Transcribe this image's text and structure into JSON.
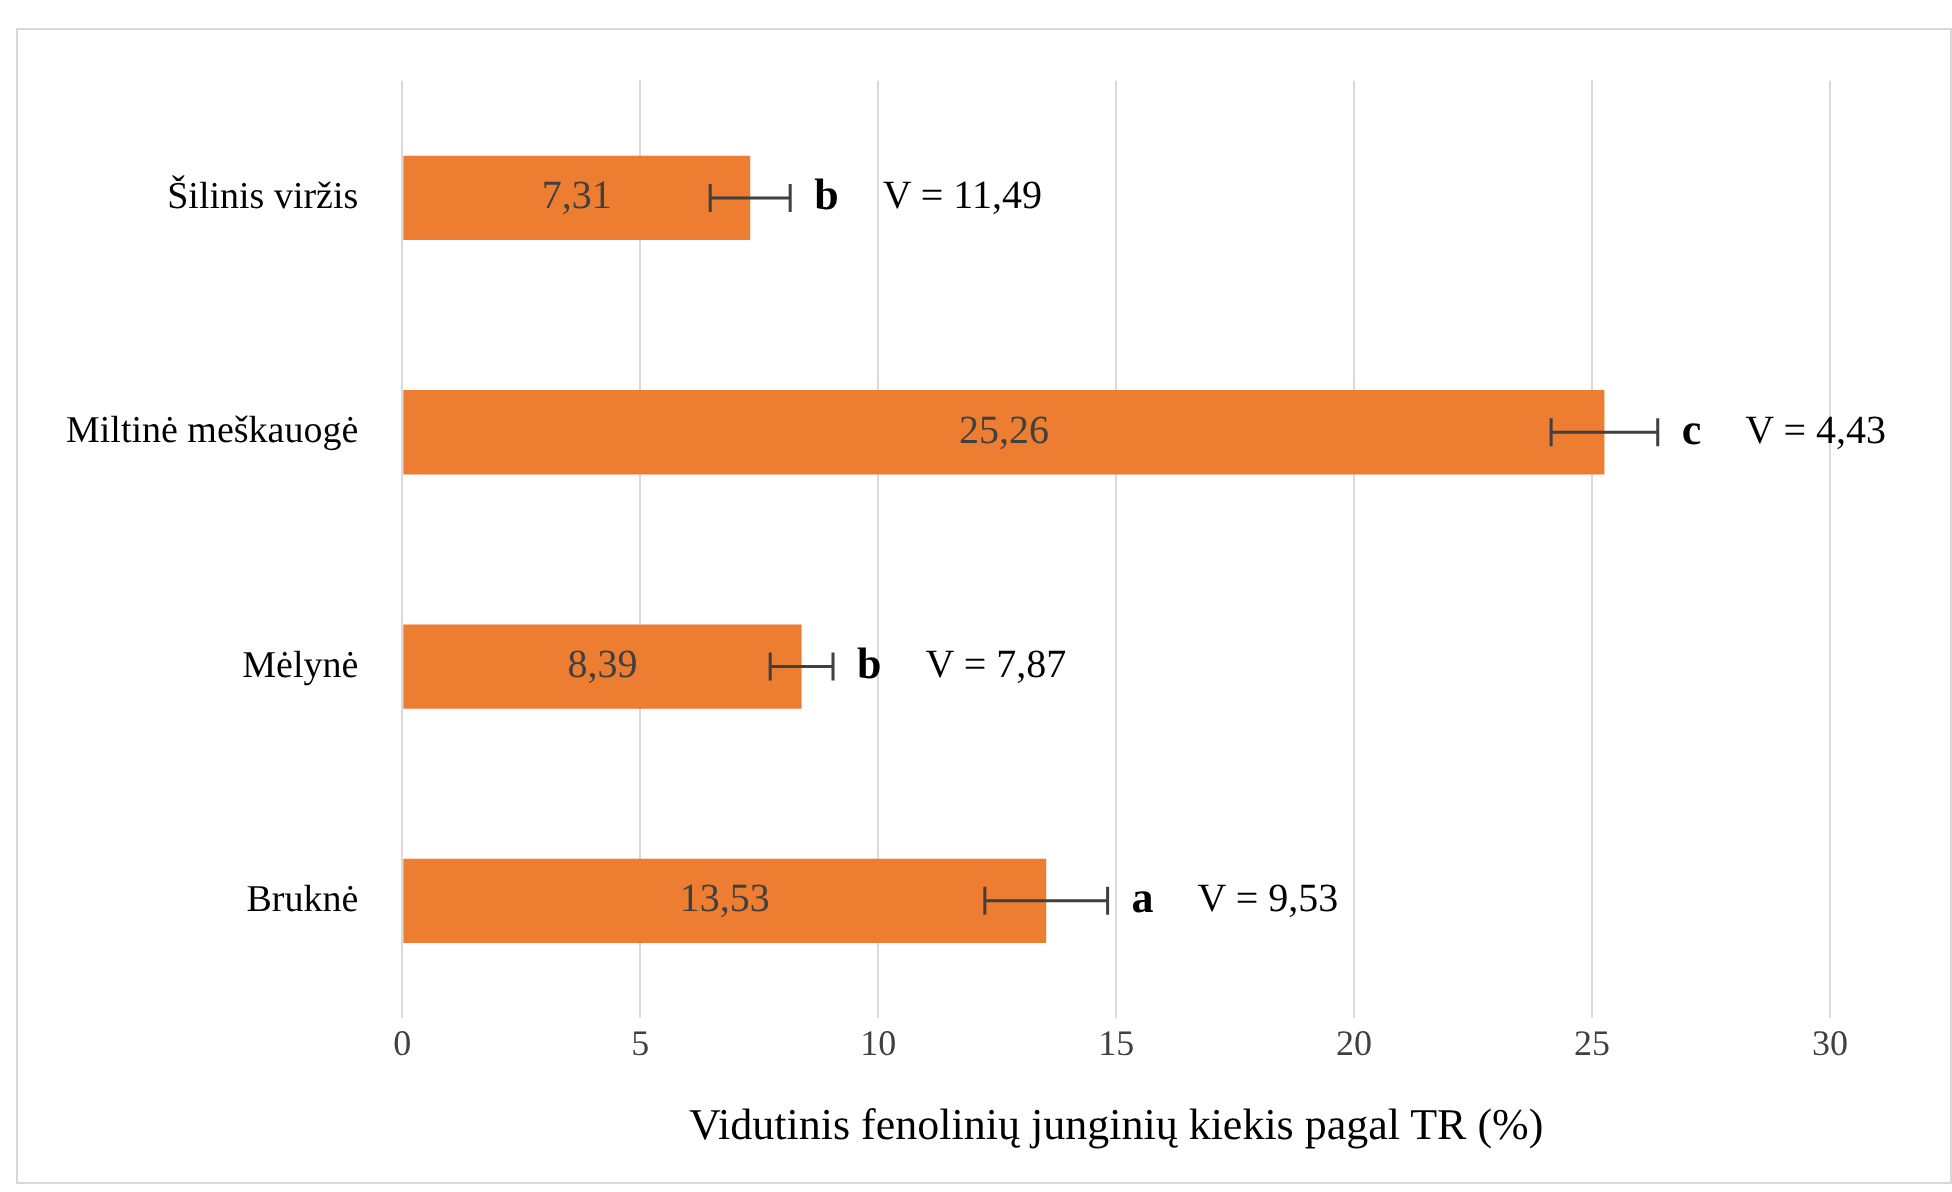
{
  "chart_data": {
    "type": "bar",
    "orientation": "horizontal",
    "xlabel": "Vidutinis fenolinių junginių kiekis pagal TR (%)",
    "categories": [
      "Šilinis viržis",
      "Miltinė meškauogė",
      "Mėlynė",
      "Bruknė"
    ],
    "value_labels": [
      "7,31",
      "25,26",
      "8,39",
      "13,53"
    ],
    "values": [
      7.31,
      25.26,
      8.39,
      13.53
    ],
    "color": "#ed7d31",
    "errors": [
      0.84,
      1.12,
      0.66,
      1.29
    ],
    "xlim": [
      0,
      30
    ],
    "xticks": [
      0,
      5,
      10,
      15,
      20,
      25,
      30
    ],
    "grid": "x",
    "annotations": [
      "b",
      "V = 11,49",
      "c",
      "V = 4,43",
      "b",
      "V = 7,87",
      "a",
      "V = 9,53"
    ]
  }
}
